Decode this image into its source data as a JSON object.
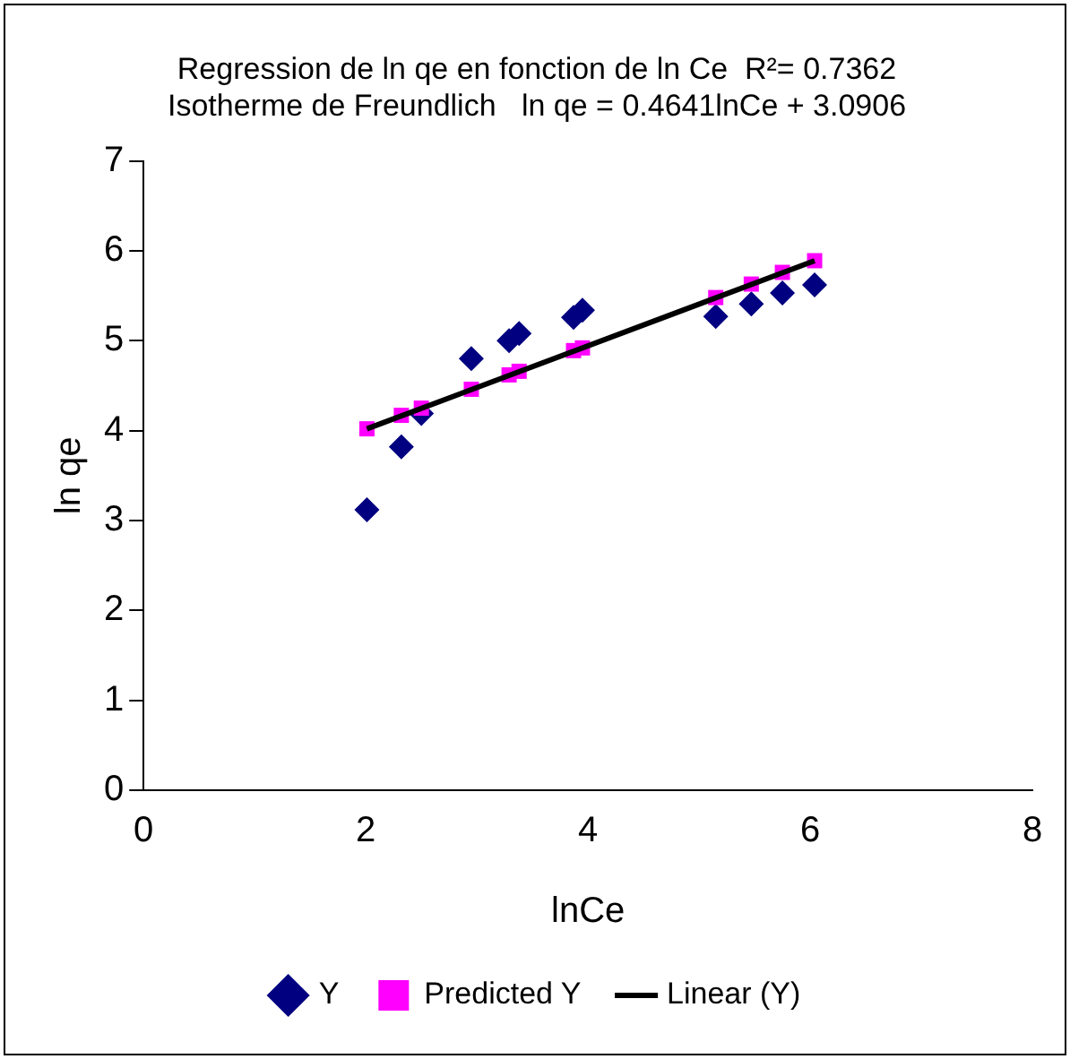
{
  "chart_data": {
    "type": "scatter",
    "title": [
      "Regression de ln qe en fonction de ln Ce  R²= 0.7362",
      "Isotherme de Freundlich   ln qe = 0.4641lnCe + 3.0906"
    ],
    "xlabel": "lnCe",
    "ylabel": "ln qe",
    "xlim": [
      0,
      8
    ],
    "xticks": [
      0,
      2,
      4,
      6,
      8
    ],
    "ylim": [
      0,
      7
    ],
    "yticks": [
      0,
      1,
      2,
      3,
      4,
      5,
      6,
      7
    ],
    "grid": false,
    "legend": "bottom",
    "x": [
      2.01,
      2.32,
      2.5,
      2.95,
      3.29,
      3.38,
      3.87,
      3.95,
      5.15,
      5.47,
      5.75,
      6.04
    ],
    "series": [
      {
        "name": "Y",
        "color": "#000080",
        "marker": "diamond",
        "values": [
          3.12,
          3.82,
          4.19,
          4.8,
          5.0,
          5.08,
          5.26,
          5.34,
          5.27,
          5.41,
          5.53,
          5.62
        ]
      },
      {
        "name": "Predicted Y",
        "color": "#ff00ff",
        "marker": "square",
        "values": [
          4.02,
          4.17,
          4.25,
          4.46,
          4.62,
          4.66,
          4.89,
          4.92,
          5.48,
          5.63,
          5.76,
          5.89
        ]
      },
      {
        "name": "Linear (Y)",
        "type": "line",
        "color": "#000000",
        "marker": "none",
        "x": [
          2.01,
          6.04
        ],
        "values": [
          4.02,
          5.89
        ]
      }
    ]
  }
}
